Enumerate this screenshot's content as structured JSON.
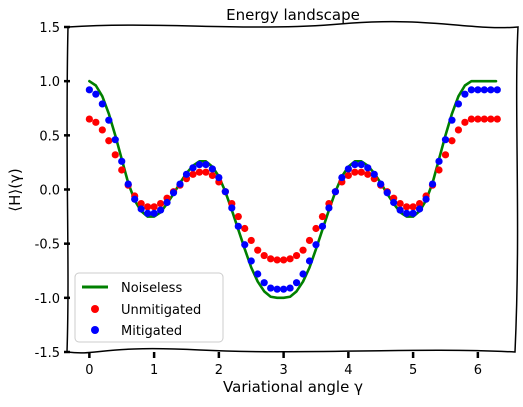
{
  "chart_data": {
    "type": "scatter",
    "title": "Energy landscape",
    "xlabel": "Variational angle γ",
    "ylabel": "⟨H⟩(γ)",
    "xlim": [
      -0.33,
      6.62
    ],
    "ylim": [
      -1.5,
      1.5
    ],
    "xticks": [
      0,
      1,
      2,
      3,
      4,
      5,
      6
    ],
    "xtick_labels": [
      "0",
      "1",
      "2",
      "3",
      "4",
      "5",
      "6"
    ],
    "yticks": [
      1.5,
      1.0,
      0.5,
      0.0,
      -0.5,
      -1.0,
      -1.5
    ],
    "ytick_labels": [
      "1.5",
      "1.0",
      "0.5",
      "0.0",
      "-0.5",
      "-1.0",
      "-1.5"
    ],
    "grid": false,
    "legend_position": "lower-left",
    "series": [
      {
        "name": "Noiseless",
        "kind": "line",
        "color": "#008000",
        "x": [
          0.0,
          0.1,
          0.2,
          0.3,
          0.4,
          0.5,
          0.6,
          0.7,
          0.8,
          0.9,
          1.0,
          1.1,
          1.2,
          1.3,
          1.4,
          1.5,
          1.6,
          1.7,
          1.8,
          1.9,
          2.0,
          2.1,
          2.2,
          2.3,
          2.4,
          2.5,
          2.6,
          2.7,
          2.8,
          2.9,
          3.0,
          3.1,
          3.2,
          3.3,
          3.4,
          3.5,
          3.6,
          3.7,
          3.8,
          3.9,
          4.0,
          4.1,
          4.2,
          4.3,
          4.4,
          4.5,
          4.6,
          4.7,
          4.8,
          4.9,
          5.0,
          5.1,
          5.2,
          5.3,
          5.4,
          5.5,
          5.6,
          5.7,
          5.8,
          5.9,
          6.0,
          6.1,
          6.2,
          6.28
        ],
        "y": [
          1.0,
          0.96,
          0.86,
          0.7,
          0.5,
          0.28,
          0.06,
          -0.1,
          -0.2,
          -0.25,
          -0.25,
          -0.21,
          -0.13,
          -0.04,
          0.06,
          0.15,
          0.22,
          0.26,
          0.26,
          0.21,
          0.12,
          -0.02,
          -0.19,
          -0.37,
          -0.55,
          -0.72,
          -0.85,
          -0.94,
          -0.99,
          -1.0,
          -1.0,
          -0.99,
          -0.94,
          -0.85,
          -0.72,
          -0.55,
          -0.37,
          -0.19,
          -0.02,
          0.12,
          0.21,
          0.26,
          0.26,
          0.22,
          0.15,
          0.06,
          -0.04,
          -0.13,
          -0.21,
          -0.25,
          -0.25,
          -0.2,
          -0.1,
          0.06,
          0.28,
          0.5,
          0.7,
          0.86,
          0.96,
          1.0,
          1.0,
          1.0,
          1.0,
          1.0
        ]
      },
      {
        "name": "Unmitigated",
        "kind": "points",
        "color": "#ff0000",
        "x": [
          0.0,
          0.1,
          0.2,
          0.3,
          0.4,
          0.5,
          0.6,
          0.7,
          0.8,
          0.9,
          1.0,
          1.1,
          1.2,
          1.3,
          1.4,
          1.5,
          1.6,
          1.7,
          1.8,
          1.9,
          2.0,
          2.1,
          2.2,
          2.3,
          2.4,
          2.5,
          2.6,
          2.7,
          2.8,
          2.9,
          3.0,
          3.1,
          3.2,
          3.3,
          3.4,
          3.5,
          3.6,
          3.7,
          3.8,
          3.9,
          4.0,
          4.1,
          4.2,
          4.3,
          4.4,
          4.5,
          4.6,
          4.7,
          4.8,
          4.9,
          5.0,
          5.1,
          5.2,
          5.3,
          5.4,
          5.5,
          5.6,
          5.7,
          5.8,
          5.9,
          6.0,
          6.1,
          6.2,
          6.3
        ],
        "y": [
          0.65,
          0.62,
          0.55,
          0.45,
          0.32,
          0.18,
          0.04,
          -0.06,
          -0.13,
          -0.16,
          -0.16,
          -0.13,
          -0.08,
          -0.02,
          0.04,
          0.1,
          0.14,
          0.16,
          0.16,
          0.13,
          0.07,
          -0.02,
          -0.13,
          -0.25,
          -0.36,
          -0.47,
          -0.56,
          -0.61,
          -0.64,
          -0.65,
          -0.65,
          -0.64,
          -0.61,
          -0.56,
          -0.47,
          -0.36,
          -0.25,
          -0.13,
          -0.02,
          0.07,
          0.13,
          0.16,
          0.16,
          0.14,
          0.1,
          0.04,
          -0.02,
          -0.08,
          -0.13,
          -0.16,
          -0.16,
          -0.13,
          -0.06,
          0.04,
          0.18,
          0.32,
          0.45,
          0.55,
          0.62,
          0.65,
          0.65,
          0.65,
          0.65,
          0.65
        ]
      },
      {
        "name": "Mitigated",
        "kind": "points",
        "color": "#0000ff",
        "x": [
          0.0,
          0.1,
          0.2,
          0.3,
          0.4,
          0.5,
          0.6,
          0.7,
          0.8,
          0.9,
          1.0,
          1.1,
          1.2,
          1.3,
          1.4,
          1.5,
          1.6,
          1.7,
          1.8,
          1.9,
          2.0,
          2.1,
          2.2,
          2.3,
          2.4,
          2.5,
          2.6,
          2.7,
          2.8,
          2.9,
          3.0,
          3.1,
          3.2,
          3.3,
          3.4,
          3.5,
          3.6,
          3.7,
          3.8,
          3.9,
          4.0,
          4.1,
          4.2,
          4.3,
          4.4,
          4.5,
          4.6,
          4.7,
          4.8,
          4.9,
          5.0,
          5.1,
          5.2,
          5.3,
          5.4,
          5.5,
          5.6,
          5.7,
          5.8,
          5.9,
          6.0,
          6.1,
          6.2,
          6.3
        ],
        "y": [
          0.92,
          0.88,
          0.79,
          0.64,
          0.46,
          0.26,
          0.05,
          -0.09,
          -0.18,
          -0.22,
          -0.22,
          -0.19,
          -0.12,
          -0.03,
          0.05,
          0.14,
          0.2,
          0.23,
          0.23,
          0.19,
          0.11,
          -0.02,
          -0.17,
          -0.34,
          -0.51,
          -0.66,
          -0.78,
          -0.86,
          -0.91,
          -0.92,
          -0.92,
          -0.91,
          -0.86,
          -0.78,
          -0.66,
          -0.51,
          -0.34,
          -0.17,
          -0.02,
          0.11,
          0.19,
          0.23,
          0.23,
          0.2,
          0.14,
          0.05,
          -0.03,
          -0.12,
          -0.19,
          -0.22,
          -0.22,
          -0.18,
          -0.09,
          0.05,
          0.26,
          0.46,
          0.64,
          0.79,
          0.88,
          0.92,
          0.92,
          0.92,
          0.92,
          0.92
        ]
      }
    ]
  }
}
